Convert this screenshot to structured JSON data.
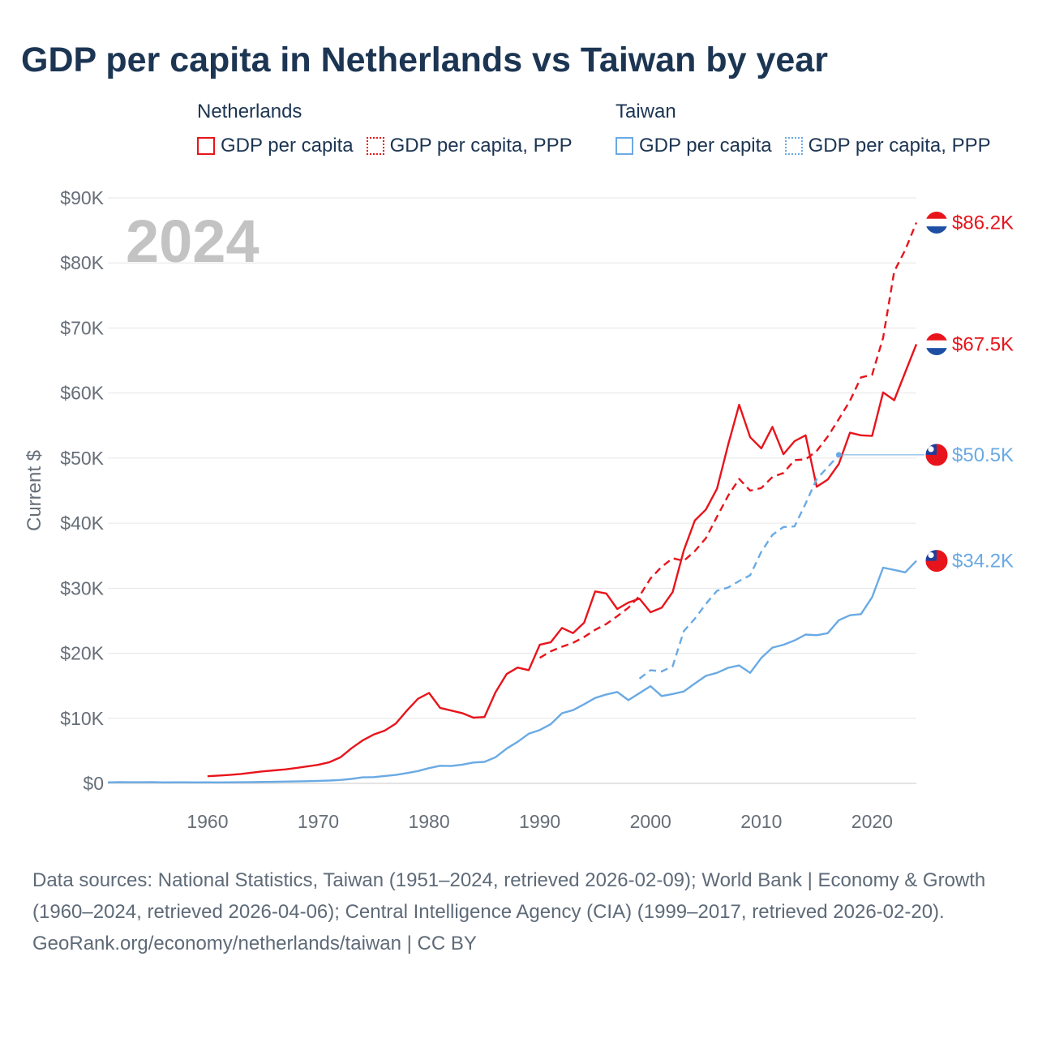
{
  "title": "GDP per capita in Netherlands vs Taiwan by year",
  "legend": {
    "groups": [
      {
        "name": "Netherlands",
        "items": [
          "GDP per capita",
          "GDP per capita, PPP"
        ]
      },
      {
        "name": "Taiwan",
        "items": [
          "GDP per capita",
          "GDP per capita, PPP"
        ]
      }
    ]
  },
  "year_watermark": "2024",
  "colors": {
    "netherlands": "#e8141c",
    "taiwan": "#6aaae4",
    "title": "#1c3553",
    "watermark": "#c3c3c3",
    "axis_text": "#666e78"
  },
  "chart_data": {
    "type": "line",
    "title": "GDP per capita in Netherlands vs Taiwan by year",
    "xlabel": "",
    "ylabel": "Current $",
    "xlim": [
      1951,
      2024
    ],
    "ylim": [
      0,
      90000
    ],
    "x_ticks": [
      1960,
      1970,
      1980,
      1990,
      2000,
      2010,
      2020
    ],
    "y_ticks": [
      0,
      10000,
      20000,
      30000,
      40000,
      50000,
      60000,
      70000,
      80000,
      90000
    ],
    "y_tick_labels": [
      "$0",
      "$10K",
      "$20K",
      "$30K",
      "$40K",
      "$50K",
      "$60K",
      "$70K",
      "$80K",
      "$90K"
    ],
    "grid": true,
    "series": [
      {
        "name": "Netherlands GDP per capita",
        "country": "Netherlands",
        "style": "solid",
        "end_label": "$67.5K",
        "x": [
          1960,
          1961,
          1962,
          1963,
          1964,
          1965,
          1966,
          1967,
          1968,
          1969,
          1970,
          1971,
          1972,
          1973,
          1974,
          1975,
          1976,
          1977,
          1978,
          1979,
          1980,
          1981,
          1982,
          1983,
          1984,
          1985,
          1986,
          1987,
          1988,
          1989,
          1990,
          1991,
          1992,
          1993,
          1994,
          1995,
          1996,
          1997,
          1998,
          1999,
          2000,
          2001,
          2002,
          2003,
          2004,
          2005,
          2006,
          2007,
          2008,
          2009,
          2010,
          2011,
          2012,
          2013,
          2014,
          2015,
          2016,
          2017,
          2018,
          2019,
          2020,
          2021,
          2022,
          2023,
          2024
        ],
        "values": [
          1100,
          1200,
          1300,
          1450,
          1650,
          1850,
          2000,
          2150,
          2350,
          2600,
          2850,
          3250,
          4000,
          5400,
          6600,
          7500,
          8100,
          9200,
          11200,
          13000,
          13900,
          11600,
          11200,
          10800,
          10100,
          10200,
          14000,
          16800,
          17800,
          17400,
          21300,
          21700,
          23900,
          23100,
          24700,
          29500,
          29200,
          26800,
          27800,
          28400,
          26300,
          27000,
          29400,
          35800,
          40400,
          42100,
          45300,
          52000,
          58200,
          53200,
          51500,
          54800,
          50600,
          52600,
          53500,
          45600,
          46700,
          49100,
          53900,
          53500,
          53400,
          60100,
          58900,
          63200,
          67500
        ]
      },
      {
        "name": "Netherlands GDP per capita, PPP",
        "country": "Netherlands",
        "style": "dashed",
        "end_label": "$86.2K",
        "x": [
          1990,
          1991,
          1992,
          1993,
          1994,
          1995,
          1996,
          1997,
          1998,
          1999,
          2000,
          2001,
          2002,
          2003,
          2004,
          2005,
          2006,
          2007,
          2008,
          2009,
          2010,
          2011,
          2012,
          2013,
          2014,
          2015,
          2016,
          2017,
          2018,
          2019,
          2020,
          2021,
          2022,
          2023,
          2024
        ],
        "values": [
          19300,
          20300,
          21000,
          21600,
          22500,
          23600,
          24500,
          25700,
          27000,
          28800,
          31500,
          33300,
          34600,
          34200,
          35700,
          37700,
          41000,
          44200,
          46800,
          45000,
          45400,
          47100,
          47700,
          49700,
          49800,
          51100,
          53300,
          56000,
          58800,
          62400,
          62800,
          68500,
          78700,
          82000,
          86200
        ]
      },
      {
        "name": "Taiwan GDP per capita",
        "country": "Taiwan",
        "style": "solid",
        "end_label": "$34.2K",
        "x": [
          1951,
          1952,
          1953,
          1954,
          1955,
          1956,
          1957,
          1958,
          1959,
          1960,
          1961,
          1962,
          1963,
          1964,
          1965,
          1966,
          1967,
          1968,
          1969,
          1970,
          1971,
          1972,
          1973,
          1974,
          1975,
          1976,
          1977,
          1978,
          1979,
          1980,
          1981,
          1982,
          1983,
          1984,
          1985,
          1986,
          1987,
          1988,
          1989,
          1990,
          1991,
          1992,
          1993,
          1994,
          1995,
          1996,
          1997,
          1998,
          1999,
          2000,
          2001,
          2002,
          2003,
          2004,
          2005,
          2006,
          2007,
          2008,
          2009,
          2010,
          2011,
          2012,
          2013,
          2014,
          2015,
          2016,
          2017,
          2018,
          2019,
          2020,
          2021,
          2022,
          2023,
          2024
        ],
        "values": [
          150,
          200,
          180,
          170,
          200,
          150,
          160,
          160,
          150,
          160,
          150,
          160,
          180,
          200,
          220,
          240,
          270,
          300,
          340,
          390,
          440,
          520,
          690,
          920,
          960,
          1130,
          1300,
          1580,
          1900,
          2340,
          2700,
          2670,
          2880,
          3200,
          3300,
          4010,
          5330,
          6380,
          7630,
          8200,
          9110,
          10780,
          11260,
          12170,
          13130,
          13660,
          14050,
          12790,
          13870,
          14940,
          13430,
          13740,
          14120,
          15350,
          16530,
          16990,
          17760,
          18130,
          16990,
          19280,
          20870,
          21300,
          21970,
          22870,
          22780,
          23090,
          25080,
          25840,
          26020,
          28610,
          33160,
          32810,
          32430,
          34200
        ]
      },
      {
        "name": "Taiwan GDP per capita, PPP",
        "country": "Taiwan",
        "style": "dashed",
        "end_label": "$50.5K",
        "x": [
          1999,
          2000,
          2001,
          2002,
          2003,
          2004,
          2005,
          2006,
          2007,
          2008,
          2009,
          2010,
          2011,
          2012,
          2013,
          2014,
          2015,
          2016,
          2017
        ],
        "values": [
          16100,
          17400,
          17200,
          18000,
          23400,
          25300,
          27600,
          29600,
          30100,
          31100,
          32000,
          35600,
          38200,
          39400,
          39500,
          43000,
          46800,
          48600,
          50500
        ]
      }
    ]
  },
  "sources": "Data sources: National Statistics, Taiwan (1951–2024, retrieved 2026-02-09); World Bank | Economy & Growth (1960–2024, retrieved 2026-04-06); Central Intelligence Agency (CIA) (1999–2017, retrieved 2026-02-20).",
  "attribution": "GeoRank.org/economy/netherlands/taiwan | CC BY"
}
